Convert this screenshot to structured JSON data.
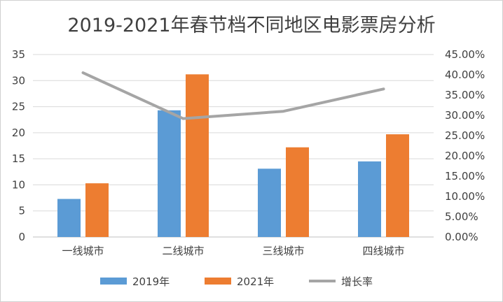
{
  "chart_data": {
    "type": "bar",
    "title": "2019-2021年春节档不同地区电影票房分析",
    "categories": [
      "一线城市",
      "二线城市",
      "三线城市",
      "四线城市"
    ],
    "series": [
      {
        "name": "2019年",
        "type": "bar",
        "axis": "left",
        "color": "#5b9bd5",
        "values": [
          7.3,
          24.3,
          13.1,
          14.5
        ]
      },
      {
        "name": "2021年",
        "type": "bar",
        "axis": "left",
        "color": "#ed7d31",
        "values": [
          10.3,
          31.2,
          17.2,
          19.7
        ]
      },
      {
        "name": "增长率",
        "type": "line",
        "axis": "right",
        "color": "#a5a5a5",
        "values": [
          0.405,
          0.292,
          0.31,
          0.365
        ]
      }
    ],
    "ylim": [
      0,
      35
    ],
    "yticks": [
      "0",
      "5",
      "10",
      "15",
      "20",
      "25",
      "30",
      "35"
    ],
    "y2lim": [
      0,
      0.45
    ],
    "y2ticks": [
      "0.00%",
      "5.00%",
      "10.00%",
      "15.00%",
      "20.00%",
      "25.00%",
      "30.00%",
      "35.00%",
      "40.00%",
      "45.00%"
    ],
    "grid": true,
    "legend_position": "bottom"
  }
}
